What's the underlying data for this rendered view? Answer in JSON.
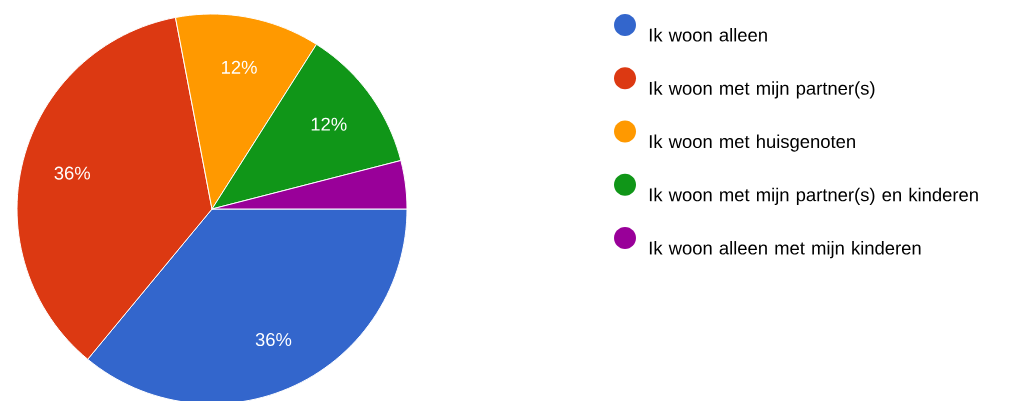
{
  "chart_data": {
    "type": "pie",
    "categories": [
      "Ik woon alleen",
      "Ik woon met mijn partner(s)",
      "Ik woon met huisgenoten",
      "Ik woon met mijn partner(s) en kinderen",
      "Ik woon alleen met mijn kinderen"
    ],
    "values": [
      36,
      36,
      12,
      12,
      4
    ],
    "colors": [
      "#3366cc",
      "#dc3912",
      "#ff9900",
      "#109618",
      "#990099"
    ],
    "value_labels": [
      "36%",
      "36%",
      "12%",
      "12%",
      null
    ],
    "legend": "right"
  }
}
